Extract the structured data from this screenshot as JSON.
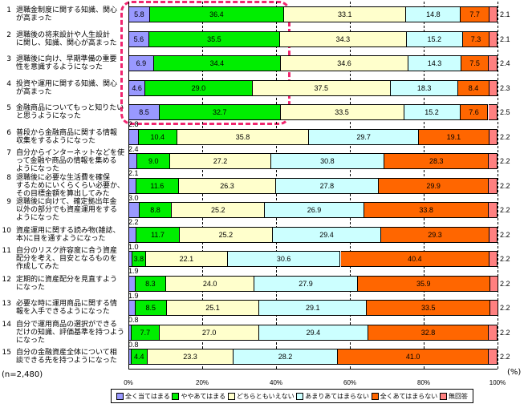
{
  "chart_data": {
    "type": "bar",
    "orientation": "horizontal-stacked-100",
    "xlabel": "(%)",
    "note": "(n=2,480)",
    "xlim": [
      0,
      100
    ],
    "xticks": [
      "0%",
      "20%",
      "40%",
      "60%",
      "80%",
      "100%"
    ],
    "legend_position": "bottom",
    "series": [
      {
        "name": "全く当てはまる",
        "color": "#9999ff"
      },
      {
        "name": "ややあてはまる",
        "color": "#00ee00"
      },
      {
        "name": "どちらともいえない",
        "color": "#ffffcc"
      },
      {
        "name": "あまりあてはまらない",
        "color": "#ccffff"
      },
      {
        "name": "全くあてはまらない",
        "color": "#ff6600"
      },
      {
        "name": "無回答",
        "color": "#ff8080"
      }
    ],
    "categories": [
      {
        "num": "1",
        "lines": [
          "退職金制度に関する知識、関心",
          "が高まった"
        ],
        "values": [
          5.8,
          36.4,
          33.1,
          14.8,
          7.7,
          2.1
        ]
      },
      {
        "num": "2",
        "lines": [
          "退職後の将来設計や人生設計",
          "に関し、知識、関心が高まった"
        ],
        "values": [
          5.6,
          35.5,
          34.3,
          15.2,
          7.3,
          2.1
        ]
      },
      {
        "num": "3",
        "lines": [
          "退職後に向け、早期準備の重要",
          "性を意識するようになった"
        ],
        "values": [
          6.9,
          34.4,
          34.6,
          14.3,
          7.5,
          2.4
        ]
      },
      {
        "num": "4",
        "lines": [
          "投資や運用に関する知識、関心",
          "が高まった"
        ],
        "values": [
          4.6,
          29.0,
          37.5,
          18.3,
          8.4,
          2.3
        ]
      },
      {
        "num": "5",
        "lines": [
          "金融商品についてもっと知りたい",
          "と思うようになった"
        ],
        "values": [
          8.5,
          32.7,
          33.5,
          15.2,
          7.6,
          2.5
        ]
      },
      {
        "num": "6",
        "lines": [
          "普段から金融商品に関する情報",
          "収集をするようになった"
        ],
        "values": [
          2.8,
          10.4,
          35.8,
          29.7,
          19.1,
          2.2
        ]
      },
      {
        "num": "7",
        "lines": [
          "自分からインターネットなどを使",
          "って金融や商品の情報を集める",
          "ようになった"
        ],
        "values": [
          2.4,
          9.0,
          27.2,
          30.8,
          28.3,
          2.2
        ]
      },
      {
        "num": "8",
        "lines": [
          "退職後に必要な生活費を確保",
          "するためにいくらくらい必要か、",
          "その目標金額を算出してみた"
        ],
        "values": [
          2.1,
          11.6,
          26.3,
          27.8,
          29.9,
          2.2
        ]
      },
      {
        "num": "9",
        "lines": [
          "退職後に向けて、確定拠出年金",
          "以外の部分でも資産運用をする",
          "ようになった"
        ],
        "values": [
          3.0,
          8.8,
          25.2,
          26.9,
          33.8,
          2.2
        ]
      },
      {
        "num": "10",
        "lines": [
          "資産運用に関する読み物(雑誌、",
          "本)に目を通すようになった"
        ],
        "values": [
          2.2,
          11.7,
          25.2,
          29.4,
          29.3,
          2.2
        ]
      },
      {
        "num": "11",
        "lines": [
          "自分のリスク許容度に合う資産",
          "配分を考え、目安となるものを",
          "作成してみた"
        ],
        "values": [
          1.0,
          3.8,
          22.1,
          30.6,
          40.4,
          2.2
        ]
      },
      {
        "num": "12",
        "lines": [
          "定期的に資産配分を見直すよう",
          "になった"
        ],
        "values": [
          1.9,
          8.3,
          24.0,
          27.9,
          35.9,
          2.2
        ]
      },
      {
        "num": "13",
        "lines": [
          "必要な時に運用商品に関する情",
          "報を入手できるようになった"
        ],
        "values": [
          1.9,
          8.5,
          25.1,
          29.1,
          33.5,
          2.2
        ]
      },
      {
        "num": "14",
        "lines": [
          "自分で運用商品の選択ができる",
          "だけの知識、評価基準を持つよう",
          "になった"
        ],
        "values": [
          0.8,
          7.7,
          27.0,
          29.4,
          32.8,
          2.2
        ]
      },
      {
        "num": "15",
        "lines": [
          "自分の金融資産全体について相",
          "談できる先を持つようになった"
        ],
        "values": [
          0.8,
          4.4,
          23.3,
          28.2,
          41.0,
          2.2
        ]
      }
    ]
  }
}
